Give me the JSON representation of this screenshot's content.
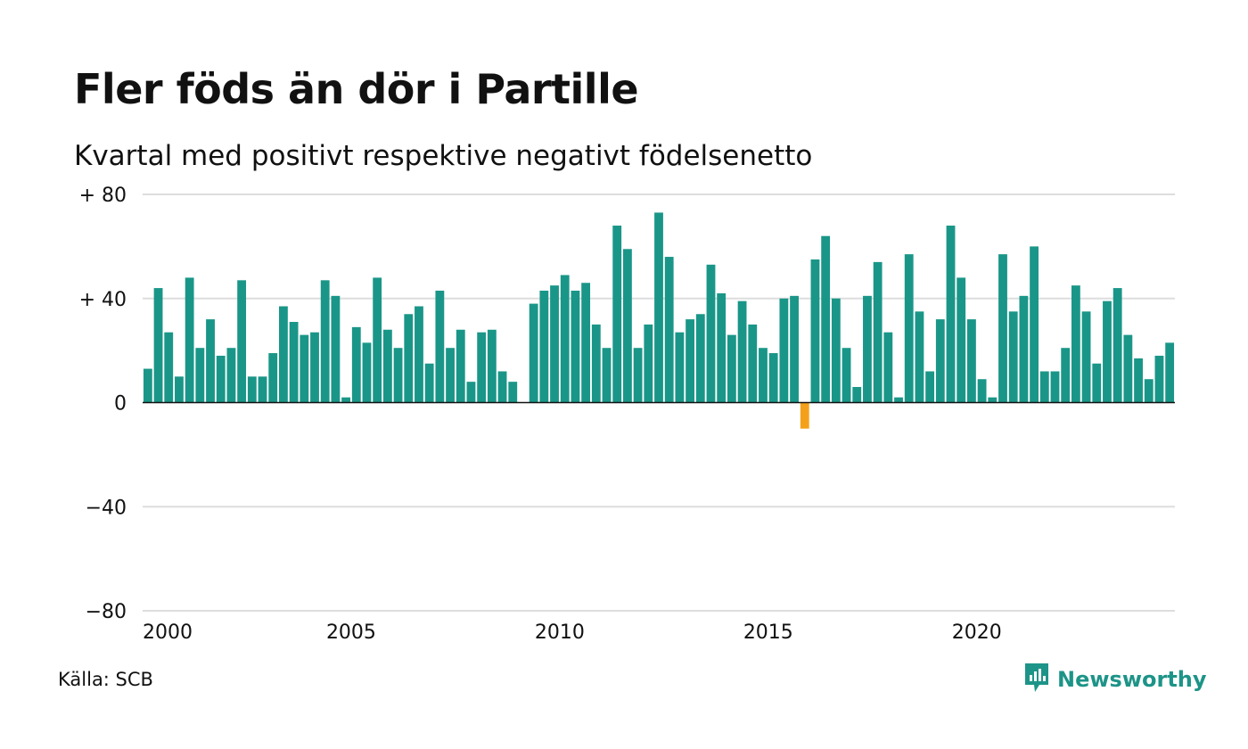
{
  "title": "Fler föds än dör i Partille",
  "subtitle": "Kvartal med positivt respektive negativt födelsenetto",
  "source": "Källa: SCB",
  "brand": {
    "name": "Newsworthy",
    "icon": "newsworthy-logo-icon"
  },
  "colors": {
    "positive": "#1a9688",
    "negative": "#f5a01a",
    "grid": "#dddddd",
    "baseline": "#111111"
  },
  "chart_data": {
    "type": "bar",
    "title": "Fler föds än dör i Partille",
    "subtitle": "Kvartal med positivt respektive negativt födelsenetto",
    "ylim": [
      -80,
      80
    ],
    "y_ticks": [
      80,
      40,
      0,
      -40,
      -80
    ],
    "y_tick_labels": [
      "+ 80",
      "+ 40",
      "0",
      "−40",
      "−80"
    ],
    "x_tick_labels": [
      "2000",
      "2005",
      "2010",
      "2015",
      "2020"
    ],
    "grid": true,
    "start": "2000 Q1",
    "values": [
      13,
      44,
      27,
      10,
      48,
      21,
      32,
      18,
      21,
      47,
      10,
      10,
      19,
      37,
      31,
      26,
      27,
      47,
      41,
      2,
      29,
      23,
      48,
      28,
      21,
      34,
      37,
      15,
      43,
      21,
      28,
      8,
      27,
      28,
      12,
      8,
      0,
      38,
      43,
      45,
      49,
      43,
      46,
      30,
      21,
      68,
      59,
      21,
      30,
      73,
      56,
      27,
      32,
      34,
      53,
      42,
      26,
      39,
      30,
      21,
      19,
      40,
      41,
      -10,
      55,
      64,
      40,
      21,
      6,
      41,
      54,
      27,
      2,
      57,
      35,
      12,
      32,
      68,
      48,
      32,
      9,
      2,
      57,
      35,
      41,
      60,
      12,
      12,
      21,
      45,
      35,
      15,
      39,
      44,
      26,
      17,
      9,
      18,
      23
    ]
  }
}
